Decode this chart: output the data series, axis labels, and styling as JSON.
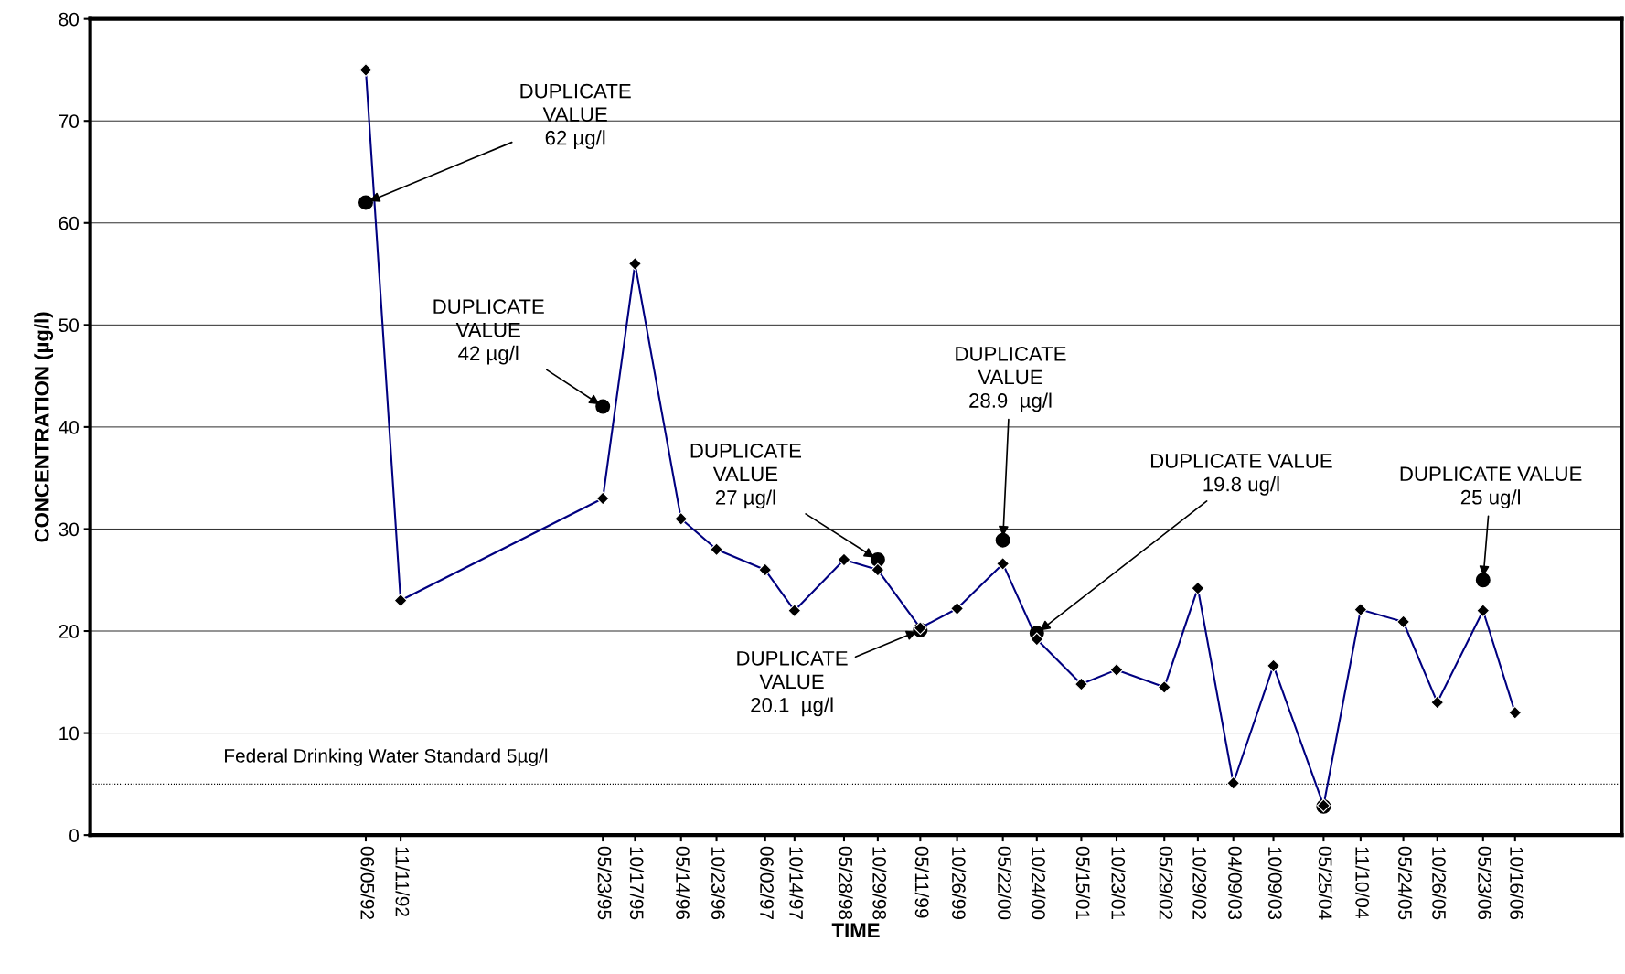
{
  "chart_data": {
    "type": "line",
    "xlabel": "TIME",
    "ylabel": "CONCENTRATION (µg/l)",
    "xlim": [
      "1988-12-25",
      "2008-02-15"
    ],
    "ylim": [
      0,
      80
    ],
    "yticks": [
      0,
      10,
      20,
      30,
      40,
      50,
      60,
      70,
      80
    ],
    "grid": "y",
    "legend": false,
    "xticks": [
      {
        "value": "1992-06-05",
        "label": "06/05/92"
      },
      {
        "value": "1992-11-11",
        "label": "11/11/92"
      },
      {
        "value": "1995-05-23",
        "label": "05/23/95"
      },
      {
        "value": "1995-10-17",
        "label": "10/17/95"
      },
      {
        "value": "1996-05-14",
        "label": "05/14/96"
      },
      {
        "value": "1996-10-23",
        "label": "10/23/96"
      },
      {
        "value": "1997-06-02",
        "label": "06/02/97"
      },
      {
        "value": "1997-10-14",
        "label": "10/14/97"
      },
      {
        "value": "1998-05-28",
        "label": "05/28/98"
      },
      {
        "value": "1998-10-29",
        "label": "10/29/98"
      },
      {
        "value": "1999-05-11",
        "label": "05/11/99"
      },
      {
        "value": "1999-10-26",
        "label": "10/26/99"
      },
      {
        "value": "2000-05-22",
        "label": "05/22/00"
      },
      {
        "value": "2000-10-24",
        "label": "10/24/00"
      },
      {
        "value": "2001-05-15",
        "label": "05/15/01"
      },
      {
        "value": "2001-10-23",
        "label": "10/23/01"
      },
      {
        "value": "2002-05-29",
        "label": "05/29/02"
      },
      {
        "value": "2002-10-29",
        "label": "10/29/02"
      },
      {
        "value": "2003-04-09",
        "label": "04/09/03"
      },
      {
        "value": "2003-10-09",
        "label": "10/09/03"
      },
      {
        "value": "2004-05-25",
        "label": "05/25/04"
      },
      {
        "value": "2004-11-10",
        "label": "11/10/04"
      },
      {
        "value": "2005-05-24",
        "label": "05/24/05"
      },
      {
        "value": "2005-10-26",
        "label": "10/26/05"
      },
      {
        "value": "2006-05-23",
        "label": "05/23/06"
      },
      {
        "value": "2006-10-16",
        "label": "10/16/06"
      }
    ],
    "series": [
      {
        "color": "#000080",
        "marker": "diamond",
        "x": [
          "1992-06-05",
          "1992-11-11",
          "1995-05-23",
          "1995-10-17",
          "1996-05-14",
          "1996-10-23",
          "1997-06-02",
          "1997-10-14",
          "1998-05-28",
          "1998-10-29",
          "1999-05-11",
          "1999-10-26",
          "2000-05-22",
          "2000-10-24",
          "2001-05-15",
          "2001-10-23",
          "2002-05-29",
          "2002-10-29",
          "2003-04-09",
          "2003-10-09",
          "2004-05-25",
          "2004-11-10",
          "2005-05-24",
          "2005-10-26",
          "2006-05-23",
          "2006-10-16"
        ],
        "values": [
          75,
          23,
          33,
          56,
          31,
          28,
          26,
          22,
          27,
          26,
          20.3,
          22.2,
          26.6,
          19.2,
          14.8,
          16.2,
          14.5,
          24.2,
          5.1,
          16.6,
          2.9,
          22.1,
          20.9,
          13,
          22,
          12
        ]
      },
      {
        "type": "scatter",
        "color": "#000000",
        "marker": "circle",
        "x": [
          "1992-06-05",
          "1995-05-23",
          "1998-10-29",
          "1999-05-11",
          "2000-05-22",
          "2000-10-24",
          "2004-05-25",
          "2006-05-23"
        ],
        "values": [
          62,
          42,
          27,
          20.1,
          28.9,
          19.8,
          2.8,
          25
        ]
      }
    ],
    "ref_lines": [
      {
        "axis": "y",
        "value": 5,
        "label": "Federal Drinking Water Standard 5µg/l",
        "color": "#000000",
        "line_style": "dotted"
      }
    ],
    "annotations": [
      {
        "text": "DUPLICATE\nVALUE\n62 µg/l",
        "x": "1992-06-05",
        "y": 62
      },
      {
        "text": "DUPLICATE\nVALUE\n42 µg/l",
        "x": "1995-05-23",
        "y": 42
      },
      {
        "text": "DUPLICATE\nVALUE\n27 µg/l",
        "x": "1998-10-29",
        "y": 27
      },
      {
        "text": "DUPLICATE\nVALUE\n20.1  µg/l",
        "x": "1999-05-11",
        "y": 20.1
      },
      {
        "text": "DUPLICATE\nVALUE\n28.9  µg/l",
        "x": "2000-05-22",
        "y": 28.9
      },
      {
        "text": "DUPLICATE VALUE\n19.8 ug/l",
        "x": "2000-10-24",
        "y": 19.8
      },
      {
        "text": "DUPLICATE VALUE\n25 ug/l",
        "x": "2006-05-23",
        "y": 25
      }
    ]
  }
}
